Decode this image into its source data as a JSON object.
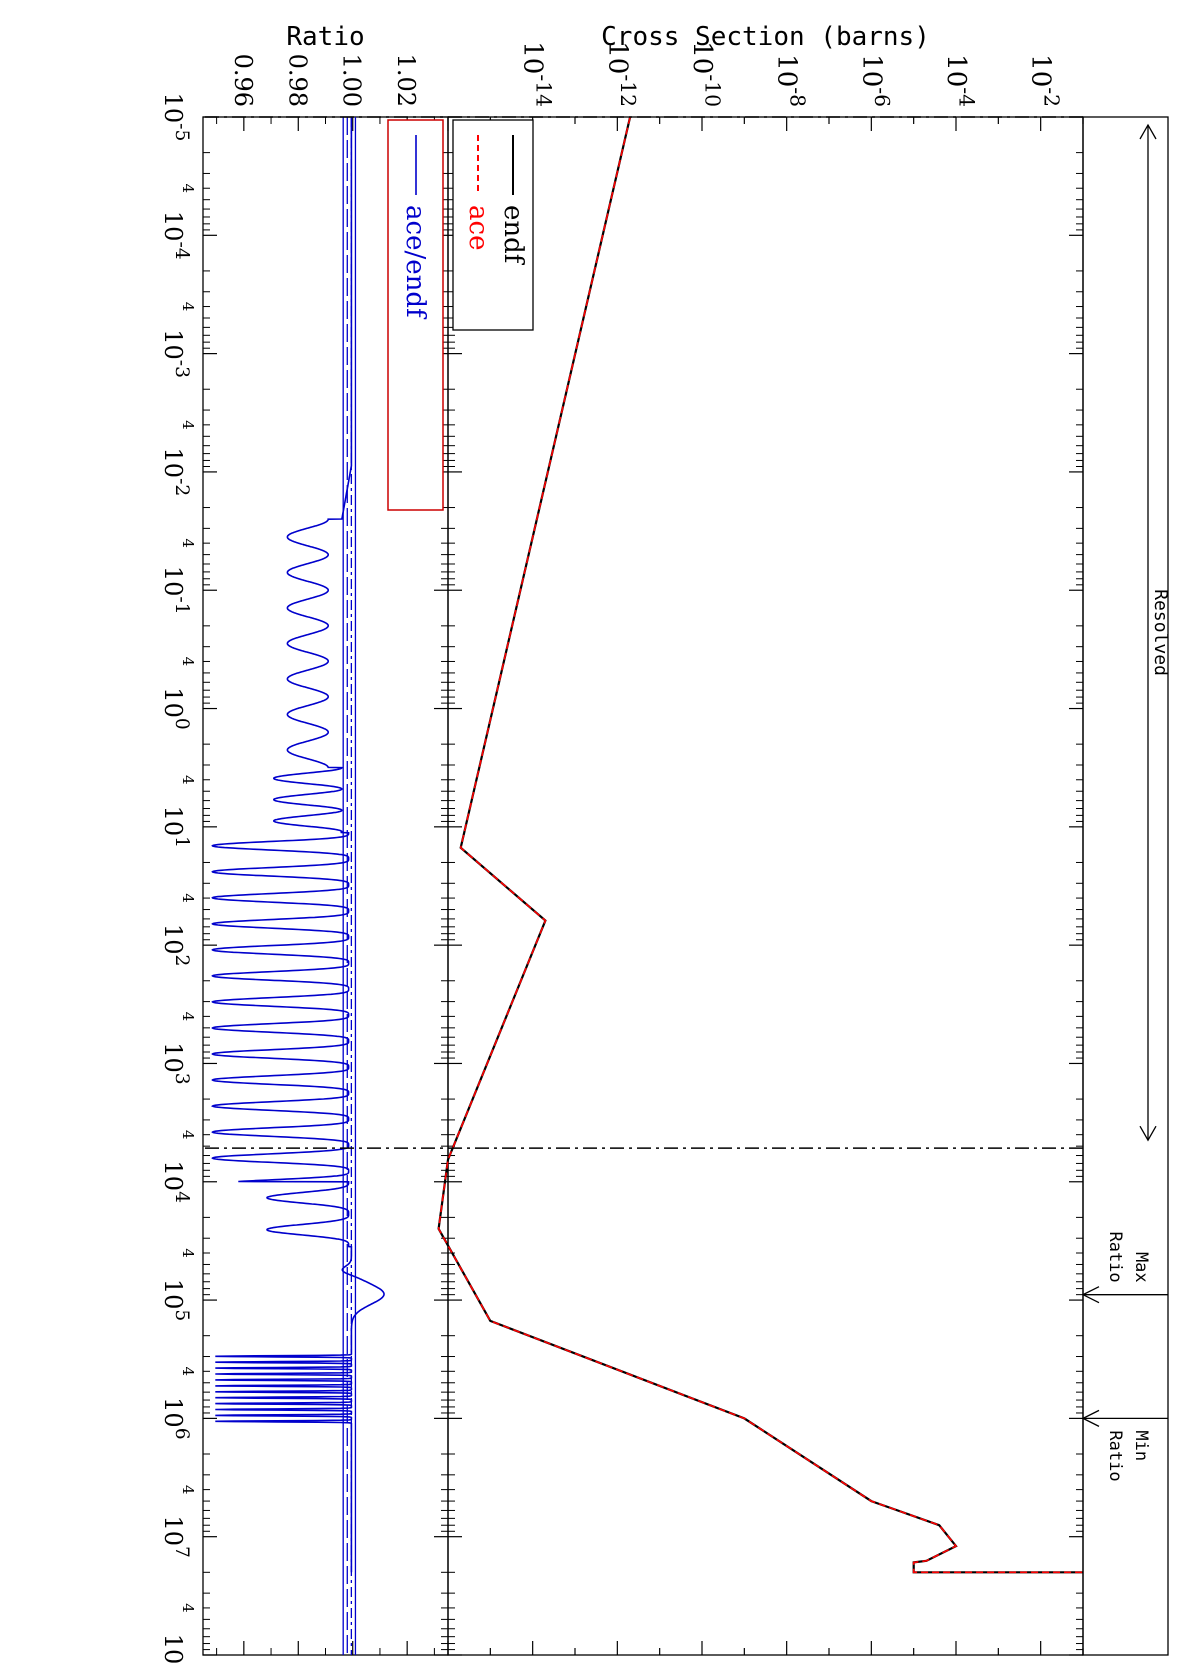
{
  "chart_data": {
    "type": "line",
    "orientation": "rotated-90-clockwise",
    "energy_axis": {
      "scale": "log",
      "range": [
        1e-05,
        100000000.0
      ],
      "major_ticks": [
        {
          "base": "10",
          "exp": "-5"
        },
        {
          "base": "10",
          "exp": "-4"
        },
        {
          "base": "10",
          "exp": "-3"
        },
        {
          "base": "10",
          "exp": "-2"
        },
        {
          "base": "10",
          "exp": "-1"
        },
        {
          "base": "10",
          "exp": "0"
        },
        {
          "base": "10",
          "exp": "1"
        },
        {
          "base": "10",
          "exp": "2"
        },
        {
          "base": "10",
          "exp": "3"
        },
        {
          "base": "10",
          "exp": "4"
        },
        {
          "base": "10",
          "exp": "5"
        },
        {
          "base": "10",
          "exp": "6"
        },
        {
          "base": "10",
          "exp": "7"
        },
        {
          "base": "10",
          "exp": "8"
        }
      ],
      "minor_label": "4"
    },
    "top_panel": {
      "ylabel": "Cross Section (barns)",
      "yscale": "log",
      "ylim": [
        1e-16,
        0.1
      ],
      "yticks": [
        {
          "base": "10",
          "exp": "-2"
        },
        {
          "base": "10",
          "exp": "-4"
        },
        {
          "base": "10",
          "exp": "-6"
        },
        {
          "base": "10",
          "exp": "-8"
        },
        {
          "base": "10",
          "exp": "-10"
        },
        {
          "base": "10",
          "exp": "-12"
        },
        {
          "base": "10",
          "exp": "-14"
        }
      ],
      "legend": {
        "placement": "bottom-left",
        "entries": [
          "endf",
          "ace"
        ]
      },
      "series": [
        {
          "name": "endf",
          "color": "#000000",
          "style": "solid",
          "x": [
            1e-05,
            15,
            62,
            6500,
            25000,
            150000,
            1000000,
            5000000,
            8000000,
            12000000,
            16000000,
            16500000,
            20000000,
            20000000
          ],
          "y": [
            2e-12,
            2e-16,
            2e-14,
            1e-16,
            6e-17,
            1e-15,
            1e-09,
            1e-06,
            4e-05,
            0.0001,
            2e-05,
            1e-05,
            1e-05,
            0.1
          ]
        },
        {
          "name": "ace",
          "color": "#ff0000",
          "style": "dashed",
          "x": [
            1e-05,
            15,
            62,
            6500,
            25000,
            150000,
            1000000,
            5000000,
            8000000,
            12000000,
            16000000,
            16500000,
            20000000,
            20000000
          ],
          "y": [
            2e-12,
            2e-16,
            2e-14,
            1e-16,
            6e-17,
            1e-15,
            1e-09,
            1e-06,
            4e-05,
            0.0001,
            2e-05,
            1e-05,
            1e-05,
            0.1
          ]
        }
      ]
    },
    "bottom_panel": {
      "ylabel": "Ratio",
      "ylim": [
        0.945,
        1.035
      ],
      "yticks": [
        "1.02",
        "1.00",
        "0.98",
        "0.96"
      ],
      "legend": {
        "placement": "bottom-left",
        "entries": [
          "ace/endf"
        ]
      },
      "series_name": "ace/endf",
      "color": "#0000cc",
      "reference_lines": [
        1.001,
        0.9995,
        0.998,
        0.9965
      ]
    },
    "annotations": {
      "resolved": {
        "label": "Resolved",
        "x_start": 1e-05,
        "x_end": 5200
      },
      "max_ratio": {
        "label_line1": "Max",
        "label_line2": "Ratio",
        "x": 90000
      },
      "min_ratio": {
        "label_line1": "Min",
        "label_line2": "Ratio",
        "x": 1000000
      },
      "vertical_markers": [
        1e-05,
        5200
      ]
    }
  }
}
